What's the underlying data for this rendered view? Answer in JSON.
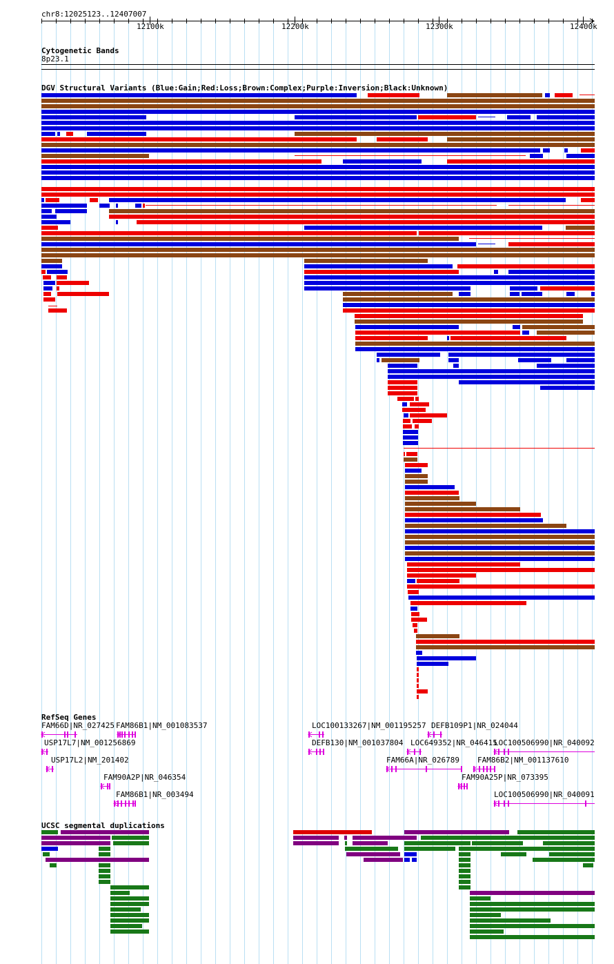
{
  "ruler": {
    "region": "chr8:12025123..12407007",
    "ticks": [
      "12100k",
      "12200k",
      "12300k",
      "12400k"
    ]
  },
  "cyto": {
    "title": "Cytogenetic Bands",
    "band": "8p23.1"
  },
  "dgv": {
    "title": "DGV Structural Variants (Blue:Gain;Red:Loss;Brown:Complex;Purple:Inversion;Black:Unknown)",
    "colors": {
      "gain": "#0000dd",
      "loss": "#ee0000",
      "complex": "#8b4513",
      "inversion": "#800080",
      "unknown": "#000000"
    }
  },
  "refseq": {
    "title": "RefSeq Genes",
    "color": "#dd00dd",
    "genes": [
      "FAM66D|NR_027425",
      "FAM86B1|NM_001083537",
      "USP17L7|NM_001256869",
      "USP17L2|NM_201402",
      "FAM90A2P|NR_046354",
      "FAM86B1|NR_003494",
      "LOC100133267|NM_001195257",
      "DEFB109P1|NR_024044",
      "DEFB130|NM_001037804",
      "LOC649352|NR_046415",
      "LOC100506990|NR_040092",
      "FAM66A|NR_026789",
      "FAM86B2|NM_001137610",
      "FAM90A25P|NR_073395",
      "LOC100506990|NR_040091"
    ]
  },
  "segdup": {
    "title": "UCSC segmental duplications",
    "colors": {
      "red": "#dd0000",
      "purple": "#800080",
      "green": "#187818"
    }
  }
}
